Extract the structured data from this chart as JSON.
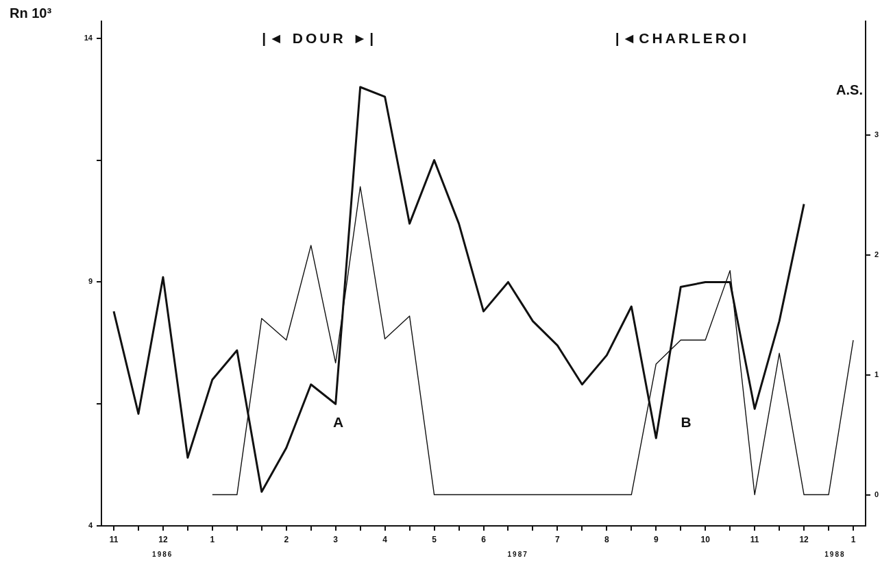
{
  "chart_data": {
    "type": "line",
    "ylabel": "Rn 10³",
    "y2label": "A.S.",
    "categories": [
      "11",
      null,
      "12",
      null,
      "1",
      null,
      null,
      "2",
      null,
      "3",
      null,
      "4",
      null,
      "5",
      null,
      "6",
      null,
      null,
      "7",
      null,
      "8",
      null,
      "9",
      null,
      "10",
      null,
      "11",
      null,
      "12",
      null,
      "1"
    ],
    "ylim": [
      4,
      14.35
    ],
    "yticks": [
      4,
      {
        "value": 6.5,
        "label": null
      },
      9,
      {
        "value": 11.5,
        "label": null
      },
      14
    ],
    "y2lim": [
      -0.26,
      3.95
    ],
    "y2ticks": [
      0,
      1,
      2,
      3
    ],
    "series": [
      {
        "color": "#111111",
        "values": [
          8.4,
          6.3,
          9.1,
          5.4,
          7.0,
          7.6,
          4.7,
          5.6,
          6.9,
          6.5,
          13.0,
          12.8,
          10.2,
          11.5,
          10.2,
          8.4,
          9.0,
          8.2,
          7.7,
          6.9,
          7.5,
          8.5,
          5.8,
          8.9,
          9.0,
          9.0,
          6.4,
          8.2,
          10.6,
          null,
          null
        ]
      },
      {
        "color": "#111111",
        "axis": "y2",
        "values": [
          null,
          null,
          null,
          null,
          0,
          0,
          1.47,
          1.29,
          2.08,
          1.1,
          2.57,
          1.3,
          1.49,
          0,
          0,
          0,
          0,
          0,
          0,
          0,
          0,
          0,
          1.09,
          1.29,
          1.29,
          1.87,
          0,
          1.18,
          0,
          0,
          1.29
        ]
      }
    ],
    "annotations": [
      "|◄ DOUR ►|",
      "|◄CHARLEROI",
      "A",
      "B",
      "1986",
      "1987",
      "1988"
    ]
  }
}
